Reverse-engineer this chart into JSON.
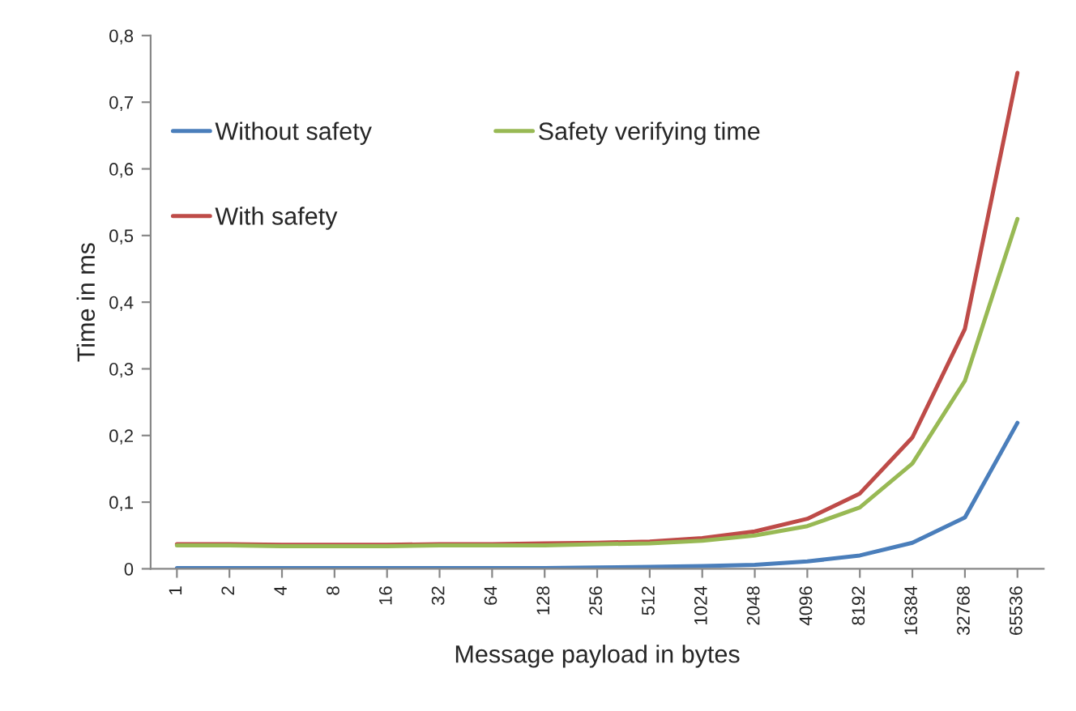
{
  "chart_data": {
    "type": "line",
    "xlabel": "Message payload in bytes",
    "ylabel": "Time in ms",
    "categories": [
      "1",
      "2",
      "4",
      "8",
      "16",
      "32",
      "64",
      "128",
      "256",
      "512",
      "1024",
      "2048",
      "4096",
      "8192",
      "16384",
      "32768",
      "65536"
    ],
    "series": [
      {
        "name": "Without safety",
        "color": "#4a7ebb",
        "values": [
          0.001,
          0.001,
          0.001,
          0.001,
          0.001,
          0.001,
          0.001,
          0.001,
          0.002,
          0.003,
          0.004,
          0.006,
          0.011,
          0.02,
          0.039,
          0.077,
          0.219
        ]
      },
      {
        "name": "With safety",
        "color": "#be4b48",
        "values": [
          0.037,
          0.037,
          0.036,
          0.036,
          0.036,
          0.037,
          0.037,
          0.038,
          0.039,
          0.041,
          0.046,
          0.056,
          0.075,
          0.113,
          0.197,
          0.36,
          0.744
        ]
      },
      {
        "name": "Safety verifying time",
        "color": "#98b954",
        "values": [
          0.035,
          0.035,
          0.034,
          0.034,
          0.034,
          0.035,
          0.035,
          0.035,
          0.037,
          0.038,
          0.042,
          0.05,
          0.064,
          0.092,
          0.158,
          0.282,
          0.525
        ]
      }
    ],
    "ylim": [
      0,
      0.8
    ],
    "yticks": [
      0,
      {
        "value": 0.1,
        "label": "0,1"
      },
      {
        "value": 0.2,
        "label": "0,2"
      },
      {
        "value": 0.3,
        "label": "0,3"
      },
      {
        "value": 0.4,
        "label": "0,4"
      },
      {
        "value": 0.5,
        "label": "0,5"
      },
      {
        "value": 0.6,
        "label": "0,6"
      },
      {
        "value": 0.7,
        "label": "0,7"
      },
      {
        "value": 0.8,
        "label": "0,8"
      }
    ],
    "grid": false,
    "legend": "top left"
  }
}
